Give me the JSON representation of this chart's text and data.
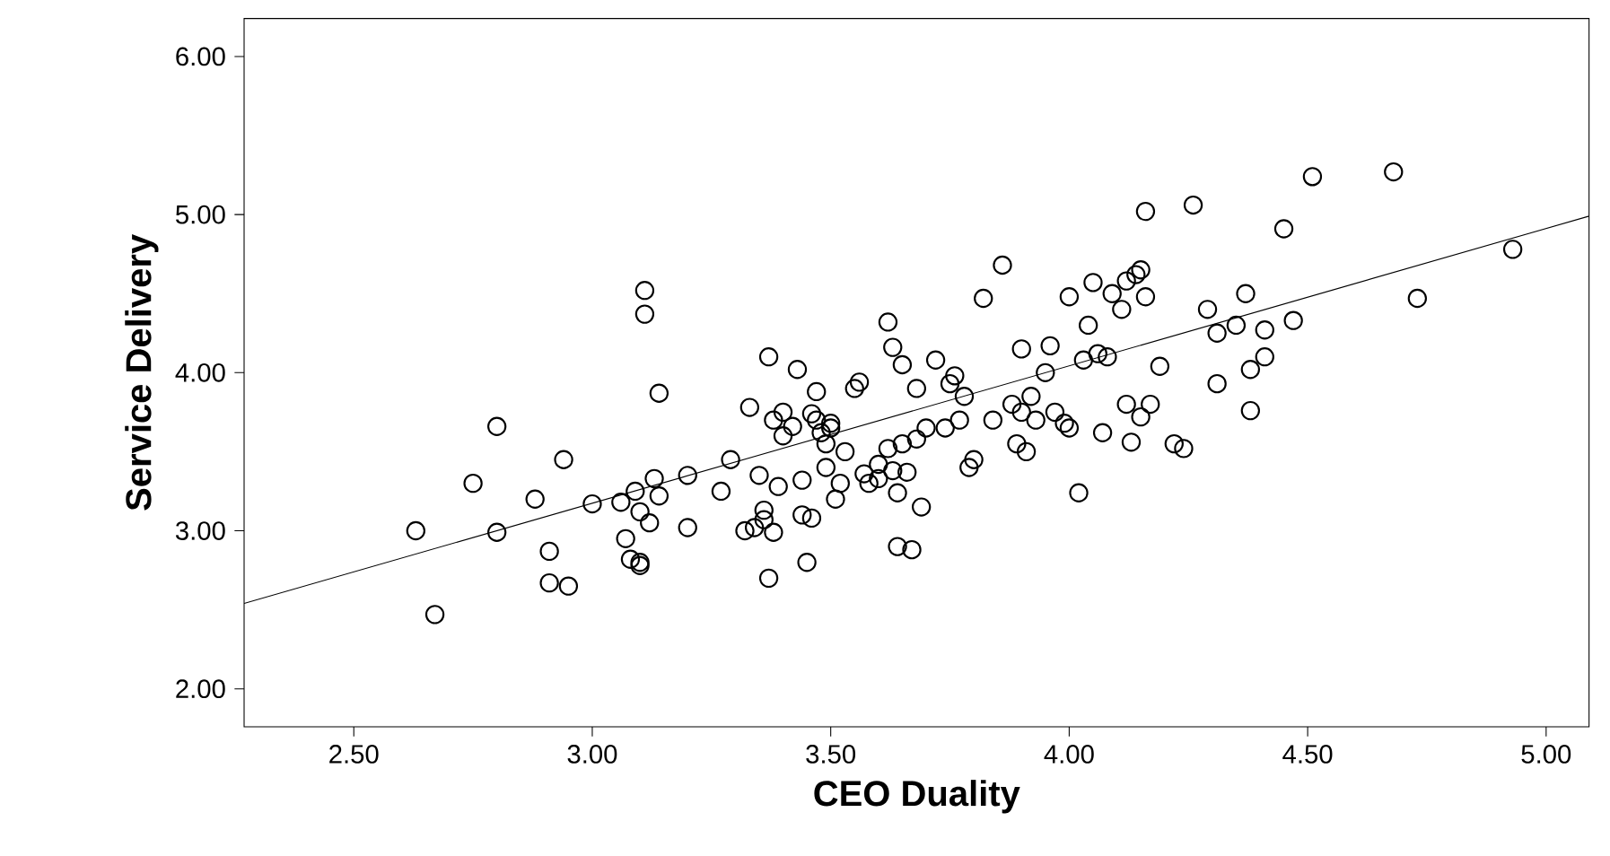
{
  "chart_data": {
    "type": "scatter",
    "xlabel": "CEO Duality",
    "ylabel": "Service Delivery",
    "xlim": [
      2.27,
      5.09
    ],
    "ylim": [
      1.76,
      6.24
    ],
    "xticks": [
      {
        "value": 2.5,
        "label": "2.50"
      },
      {
        "value": 3.0,
        "label": "3.00"
      },
      {
        "value": 3.5,
        "label": "3.50"
      },
      {
        "value": 4.0,
        "label": "4.00"
      },
      {
        "value": 4.5,
        "label": "4.50"
      },
      {
        "value": 5.0,
        "label": "5.00"
      }
    ],
    "yticks": [
      {
        "value": 2.0,
        "label": "2.00"
      },
      {
        "value": 3.0,
        "label": "3.00"
      },
      {
        "value": 4.0,
        "label": "4.00"
      },
      {
        "value": 5.0,
        "label": "5.00"
      },
      {
        "value": 6.0,
        "label": "6.00"
      }
    ],
    "grid": false,
    "series": [
      {
        "marker": "circle",
        "color": "#000000",
        "x": [
          2.63,
          2.67,
          2.75,
          2.8,
          2.8,
          2.88,
          2.91,
          2.91,
          2.94,
          2.95,
          3.0,
          3.06,
          3.07,
          3.08,
          3.09,
          3.1,
          3.1,
          3.1,
          3.11,
          3.11,
          3.12,
          3.13,
          3.14,
          3.14,
          3.2,
          3.2,
          3.27,
          3.29,
          3.32,
          3.33,
          3.34,
          3.35,
          3.36,
          3.36,
          3.37,
          3.37,
          3.38,
          3.38,
          3.39,
          3.4,
          3.4,
          3.42,
          3.43,
          3.44,
          3.44,
          3.45,
          3.46,
          3.46,
          3.47,
          3.47,
          3.48,
          3.49,
          3.49,
          3.5,
          3.5,
          3.51,
          3.52,
          3.53,
          3.55,
          3.56,
          3.57,
          3.58,
          3.6,
          3.6,
          3.62,
          3.62,
          3.63,
          3.63,
          3.64,
          3.64,
          3.65,
          3.65,
          3.66,
          3.67,
          3.68,
          3.68,
          3.69,
          3.7,
          3.72,
          3.74,
          3.75,
          3.76,
          3.77,
          3.78,
          3.79,
          3.8,
          3.82,
          3.84,
          3.86,
          3.88,
          3.89,
          3.9,
          3.9,
          3.91,
          3.92,
          3.93,
          3.95,
          3.96,
          3.97,
          3.99,
          4.0,
          4.0,
          4.02,
          4.03,
          4.04,
          4.05,
          4.06,
          4.07,
          4.08,
          4.09,
          4.11,
          4.12,
          4.12,
          4.13,
          4.14,
          4.15,
          4.15,
          4.16,
          4.16,
          4.17,
          4.19,
          4.22,
          4.24,
          4.26,
          4.29,
          4.31,
          4.31,
          4.35,
          4.37,
          4.38,
          4.38,
          4.41,
          4.41,
          4.45,
          4.47,
          4.51,
          4.68,
          4.73,
          4.93
        ],
        "values": [
          3.0,
          2.47,
          3.3,
          3.66,
          2.99,
          3.2,
          2.87,
          2.67,
          3.45,
          2.65,
          3.17,
          3.18,
          2.95,
          2.82,
          3.25,
          2.78,
          2.8,
          3.12,
          4.52,
          4.37,
          3.05,
          3.33,
          3.87,
          3.22,
          3.02,
          3.35,
          3.25,
          3.45,
          3.0,
          3.78,
          3.02,
          3.35,
          3.13,
          3.07,
          4.1,
          2.7,
          3.7,
          2.99,
          3.28,
          3.75,
          3.6,
          3.66,
          4.02,
          3.32,
          3.1,
          2.8,
          3.74,
          3.08,
          3.88,
          3.7,
          3.62,
          3.55,
          3.4,
          3.68,
          3.65,
          3.2,
          3.3,
          3.5,
          3.9,
          3.94,
          3.36,
          3.3,
          3.33,
          3.42,
          4.32,
          3.52,
          4.16,
          3.38,
          2.9,
          3.24,
          3.55,
          4.05,
          3.37,
          2.88,
          3.9,
          3.58,
          3.15,
          3.65,
          4.08,
          3.65,
          3.93,
          3.98,
          3.7,
          3.85,
          3.4,
          3.45,
          4.47,
          3.7,
          4.68,
          3.8,
          3.55,
          4.15,
          3.75,
          3.5,
          3.85,
          3.7,
          4.0,
          4.17,
          3.75,
          3.68,
          4.48,
          3.65,
          3.24,
          4.08,
          4.3,
          4.57,
          4.12,
          3.62,
          4.1,
          4.5,
          4.4,
          4.58,
          3.8,
          3.56,
          4.62,
          4.65,
          3.72,
          5.02,
          4.48,
          3.8,
          4.04,
          3.55,
          3.52,
          5.06,
          4.4,
          4.25,
          3.93,
          4.3,
          4.5,
          4.02,
          3.76,
          4.1,
          4.27,
          4.91,
          4.33,
          5.24,
          5.27,
          4.47,
          4.78
        ]
      },
      {
        "type": "line",
        "marker": "none",
        "line_style": "solid",
        "color": "#000000",
        "x": [
          2.27,
          5.09
        ],
        "values": [
          2.54,
          4.99
        ]
      }
    ]
  }
}
